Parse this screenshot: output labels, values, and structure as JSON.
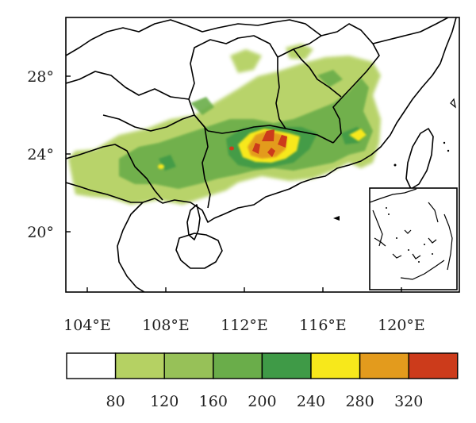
{
  "map": {
    "lat_ticks": [
      "28°",
      "24°",
      "20°"
    ],
    "lon_ticks": [
      "104°E",
      "108°E",
      "112°E",
      "116°E",
      "120°E"
    ]
  },
  "legend": {
    "labels": [
      "80",
      "120",
      "160",
      "200",
      "240",
      "280",
      "320"
    ],
    "colors": [
      "#ffffff",
      "#b5d163",
      "#97c158",
      "#6aad4a",
      "#3f9a47",
      "#f7e81b",
      "#e39b1d",
      "#cc3b1b"
    ]
  }
}
